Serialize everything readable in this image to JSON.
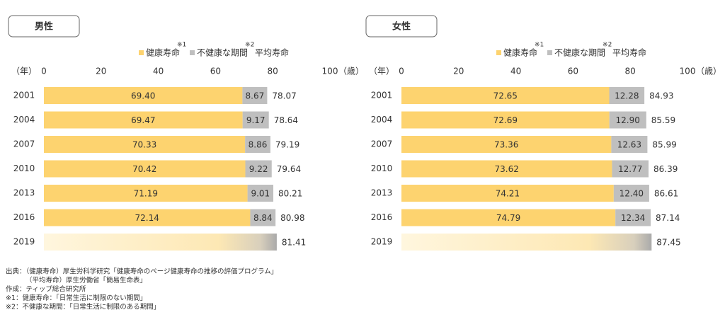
{
  "chart_data": [
    {
      "type": "stacked-bar-horizontal",
      "title": "男性",
      "y_label": "（年）",
      "x_unit": "（歳）",
      "categories": [
        "2001",
        "2004",
        "2007",
        "2010",
        "2013",
        "2016",
        "2019"
      ],
      "xlim": [
        0,
        100
      ],
      "xticks": [
        0,
        20,
        40,
        60,
        80,
        100
      ],
      "grid": false,
      "series": [
        {
          "name": "健康寿命",
          "note": "※1",
          "color": "#fdd36f",
          "values": [
            69.4,
            69.47,
            70.33,
            70.42,
            71.19,
            72.14,
            null
          ],
          "value_labels": [
            "69.40",
            "69.47",
            "70.33",
            "70.42",
            "71.19",
            "72.14",
            null
          ]
        },
        {
          "name": "不健康な期間",
          "note": "※2",
          "color": "#bfbfbf",
          "values": [
            8.67,
            9.17,
            8.86,
            9.22,
            9.01,
            8.84,
            null
          ],
          "value_labels": [
            "8.67",
            "9.17",
            "8.86",
            "9.22",
            "9.01",
            "8.84",
            null
          ]
        }
      ],
      "totals": {
        "name": "平均寿命",
        "values": [
          78.07,
          78.64,
          79.19,
          79.64,
          80.21,
          80.98,
          81.41
        ]
      }
    },
    {
      "type": "stacked-bar-horizontal",
      "title": "女性",
      "y_label": "（年）",
      "x_unit": "（歳）",
      "categories": [
        "2001",
        "2004",
        "2007",
        "2010",
        "2013",
        "2016",
        "2019"
      ],
      "xlim": [
        0,
        100
      ],
      "xticks": [
        0,
        20,
        40,
        60,
        80,
        100
      ],
      "grid": false,
      "series": [
        {
          "name": "健康寿命",
          "note": "※1",
          "color": "#fdd36f",
          "values": [
            72.65,
            72.69,
            73.36,
            73.62,
            74.21,
            74.79,
            null
          ],
          "value_labels": [
            "72.65",
            "72.69",
            "73.36",
            "73.62",
            "74.21",
            "74.79",
            null
          ]
        },
        {
          "name": "不健康な期間",
          "note": "※2",
          "color": "#bfbfbf",
          "values": [
            12.28,
            12.9,
            12.63,
            12.77,
            12.4,
            12.34,
            null
          ],
          "value_labels": [
            "12.28",
            "12.90",
            "12.63",
            "12.77",
            "12.40",
            "12.34",
            null
          ]
        }
      ],
      "totals": {
        "name": "平均寿命",
        "values": [
          84.93,
          85.59,
          85.99,
          86.39,
          86.61,
          87.14,
          87.45
        ]
      }
    }
  ],
  "notes": [
    "出典：（健康寿命）厚生労科学研究「健康寿命のページ健康寿命の推移の評価プログラム」",
    "（平均寿命）厚生労働省「簡易生命表」",
    "作成：ティップ総合研究所",
    "※1：健康寿命：「日常生活に制限のない期間」",
    "※2：不健康な期間：「日常生活に制限のある期間」"
  ]
}
